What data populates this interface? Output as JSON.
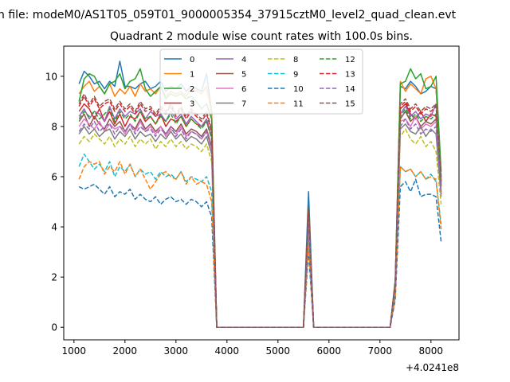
{
  "figure": {
    "suptitle": "n file: modeM0/AS1T05_059T01_9000005354_37915cztM0_level2_quad_clean.evt",
    "title": "Quadrant 2 module wise count rates with 100.0s bins.",
    "offset_label": "+4.0241e8"
  },
  "chart_data": {
    "type": "line",
    "title": "Quadrant 2 module wise count rates with 100.0s bins.",
    "xlabel": "",
    "ylabel": "",
    "x_offset": 402410000,
    "xlim": [
      800,
      8550
    ],
    "ylim": [
      -0.5,
      11.2
    ],
    "xticks": [
      1000,
      2000,
      3000,
      4000,
      5000,
      6000,
      7000,
      8000
    ],
    "yticks": [
      0,
      2,
      4,
      6,
      8,
      10
    ],
    "grid": false,
    "legend": {
      "placement": "top-center",
      "columns": 4
    },
    "x": [
      1100,
      1200,
      1300,
      1400,
      1500,
      1600,
      1700,
      1800,
      1900,
      2000,
      2100,
      2200,
      2300,
      2400,
      2500,
      2600,
      2700,
      2800,
      2900,
      3000,
      3100,
      3200,
      3300,
      3400,
      3500,
      3600,
      3700,
      3800,
      3900,
      4000,
      4100,
      4200,
      4300,
      4400,
      4500,
      4600,
      4700,
      4800,
      4900,
      5000,
      5100,
      5200,
      5300,
      5400,
      5500,
      5600,
      5700,
      5800,
      5900,
      6000,
      6100,
      6200,
      6300,
      6400,
      6500,
      6600,
      6700,
      6800,
      6900,
      7000,
      7100,
      7200,
      7300,
      7400,
      7500,
      7600,
      7700,
      7800,
      7900,
      8000,
      8100,
      8200
    ],
    "series": [
      {
        "name": "0",
        "color": "#1f77b4",
        "dash": "solid",
        "values": [
          9.7,
          10.2,
          10.0,
          9.7,
          9.8,
          9.5,
          9.8,
          9.6,
          10.6,
          9.6,
          9.6,
          9.5,
          9.7,
          9.8,
          9.5,
          9.6,
          9.8,
          9.4,
          9.6,
          9.5,
          9.7,
          9.4,
          9.6,
          9.5,
          9.4,
          10.1,
          8.6,
          0,
          0,
          0,
          0,
          0,
          0,
          0,
          0,
          0,
          0,
          0,
          0,
          0,
          0,
          0,
          0,
          0,
          0,
          5.4,
          0,
          0,
          0,
          0,
          0,
          0,
          0,
          0,
          0,
          0,
          0,
          0,
          0,
          0,
          0,
          0,
          1.8,
          9.6,
          9.5,
          9.8,
          9.6,
          9.3,
          9.4,
          9.6,
          9.5,
          6.0
        ]
      },
      {
        "name": "1",
        "color": "#ff7f0e",
        "dash": "solid",
        "values": [
          9.3,
          9.6,
          9.8,
          9.4,
          9.6,
          9.3,
          9.7,
          9.2,
          9.5,
          9.3,
          9.6,
          9.2,
          9.7,
          9.4,
          9.5,
          9.3,
          9.6,
          9.2,
          9.4,
          9.3,
          9.4,
          9.2,
          9.5,
          9.4,
          9.3,
          9.6,
          8.5,
          0,
          0,
          0,
          0,
          0,
          0,
          0,
          0,
          0,
          0,
          0,
          0,
          0,
          0,
          0,
          0,
          0,
          0,
          4.6,
          0,
          0,
          0,
          0,
          0,
          0,
          0,
          0,
          0,
          0,
          0,
          0,
          0,
          0,
          0,
          0,
          1.8,
          9.8,
          9.4,
          9.7,
          9.5,
          9.3,
          9.9,
          10.0,
          9.5,
          5.9
        ]
      },
      {
        "name": "2",
        "color": "#2ca02c",
        "dash": "solid",
        "values": [
          9.0,
          9.9,
          10.1,
          10.0,
          9.6,
          9.3,
          9.7,
          9.8,
          10.1,
          9.5,
          9.8,
          9.9,
          10.3,
          9.5,
          9.2,
          9.4,
          9.6,
          9.1,
          9.3,
          9.2,
          9.3,
          9.1,
          9.2,
          9.0,
          8.7,
          8.9,
          8.3,
          0,
          0,
          0,
          0,
          0,
          0,
          0,
          0,
          0,
          0,
          0,
          0,
          0,
          0,
          0,
          0,
          0,
          0,
          4.8,
          0,
          0,
          0,
          0,
          0,
          0,
          0,
          0,
          0,
          0,
          0,
          0,
          0,
          0,
          0,
          0,
          1.9,
          9.7,
          9.8,
          10.3,
          9.9,
          10.1,
          9.5,
          9.6,
          10.0,
          6.2
        ]
      },
      {
        "name": "3",
        "color": "#d62728",
        "dash": "solid",
        "values": [
          8.6,
          8.9,
          8.7,
          8.3,
          8.7,
          8.2,
          8.6,
          8.1,
          8.5,
          8.0,
          8.4,
          8.3,
          8.6,
          8.2,
          8.4,
          8.1,
          8.5,
          8.0,
          8.3,
          8.2,
          8.4,
          8.0,
          8.3,
          8.1,
          8.0,
          8.2,
          7.6,
          0,
          0,
          0,
          0,
          0,
          0,
          0,
          0,
          0,
          0,
          0,
          0,
          0,
          0,
          0,
          0,
          0,
          0,
          4.4,
          0,
          0,
          0,
          0,
          0,
          0,
          0,
          0,
          0,
          0,
          0,
          0,
          0,
          0,
          0,
          0,
          1.7,
          8.7,
          8.9,
          8.5,
          8.3,
          8.6,
          8.2,
          8.5,
          8.4,
          5.6
        ]
      },
      {
        "name": "4",
        "color": "#9467bd",
        "dash": "solid",
        "values": [
          8.4,
          8.7,
          8.3,
          8.6,
          8.5,
          8.2,
          8.8,
          8.3,
          8.7,
          8.4,
          8.6,
          8.5,
          8.7,
          8.3,
          8.6,
          8.4,
          8.5,
          8.2,
          8.6,
          8.3,
          8.5,
          8.1,
          8.4,
          8.2,
          8.0,
          8.3,
          7.6,
          0,
          0,
          0,
          0,
          0,
          0,
          0,
          0,
          0,
          0,
          0,
          0,
          0,
          0,
          0,
          0,
          0,
          0,
          4.5,
          0,
          0,
          0,
          0,
          0,
          0,
          0,
          0,
          0,
          0,
          0,
          0,
          0,
          0,
          0,
          0,
          1.7,
          8.5,
          8.8,
          8.4,
          8.6,
          8.3,
          8.5,
          8.4,
          8.9,
          5.7
        ]
      },
      {
        "name": "5",
        "color": "#8c564b",
        "dash": "solid",
        "values": [
          8.2,
          8.5,
          8.0,
          8.4,
          8.1,
          7.9,
          8.3,
          8.0,
          8.2,
          7.8,
          8.1,
          7.9,
          8.3,
          7.9,
          8.1,
          7.8,
          8.0,
          7.7,
          8.0,
          7.8,
          8.1,
          7.7,
          7.9,
          7.8,
          7.6,
          7.9,
          7.2,
          0,
          0,
          0,
          0,
          0,
          0,
          0,
          0,
          0,
          0,
          0,
          0,
          0,
          0,
          0,
          0,
          0,
          0,
          4.2,
          0,
          0,
          0,
          0,
          0,
          0,
          0,
          0,
          0,
          0,
          0,
          0,
          0,
          0,
          0,
          0,
          1.6,
          8.3,
          8.6,
          8.2,
          8.4,
          8.0,
          8.2,
          8.1,
          8.3,
          5.4
        ]
      },
      {
        "name": "6",
        "color": "#e377c2",
        "dash": "solid",
        "values": [
          8.0,
          8.3,
          8.1,
          7.9,
          8.2,
          7.8,
          8.1,
          7.9,
          8.0,
          7.7,
          8.1,
          7.8,
          8.2,
          7.8,
          8.0,
          7.7,
          8.0,
          7.6,
          7.9,
          7.7,
          8.0,
          7.6,
          7.8,
          7.7,
          7.5,
          7.8,
          7.1,
          0,
          0,
          0,
          0,
          0,
          0,
          0,
          0,
          0,
          0,
          0,
          0,
          0,
          0,
          0,
          0,
          0,
          0,
          4.3,
          0,
          0,
          0,
          0,
          0,
          0,
          0,
          0,
          0,
          0,
          0,
          0,
          0,
          0,
          0,
          0,
          1.6,
          8.2,
          8.3,
          8.0,
          8.4,
          7.9,
          8.1,
          8.0,
          8.2,
          5.3
        ]
      },
      {
        "name": "7",
        "color": "#7f7f7f",
        "dash": "solid",
        "values": [
          7.7,
          8.0,
          7.7,
          7.9,
          7.6,
          7.8,
          7.9,
          7.5,
          7.8,
          7.6,
          7.9,
          7.5,
          7.8,
          7.6,
          7.7,
          7.4,
          7.7,
          7.5,
          7.8,
          7.5,
          7.7,
          7.4,
          7.6,
          7.5,
          7.3,
          7.6,
          6.9,
          0,
          0,
          0,
          0,
          0,
          0,
          0,
          0,
          0,
          0,
          0,
          0,
          0,
          0,
          0,
          0,
          0,
          0,
          4.1,
          0,
          0,
          0,
          0,
          0,
          0,
          0,
          0,
          0,
          0,
          0,
          0,
          0,
          0,
          0,
          0,
          1.5,
          7.9,
          8.1,
          7.8,
          7.7,
          8.0,
          7.6,
          7.9,
          7.7,
          5.2
        ]
      },
      {
        "name": "8",
        "color": "#bcbd22",
        "dash": "dashed",
        "values": [
          7.3,
          7.6,
          7.4,
          7.7,
          7.5,
          7.3,
          7.6,
          7.2,
          7.5,
          7.3,
          7.6,
          7.2,
          7.5,
          7.3,
          7.5,
          7.1,
          7.4,
          7.2,
          7.5,
          7.2,
          7.4,
          7.1,
          7.3,
          7.2,
          7.0,
          7.3,
          6.6,
          0,
          0,
          0,
          0,
          0,
          0,
          0,
          0,
          0,
          0,
          0,
          0,
          0,
          0,
          0,
          0,
          0,
          0,
          3.8,
          0,
          0,
          0,
          0,
          0,
          0,
          0,
          0,
          0,
          0,
          0,
          0,
          0,
          0,
          0,
          0,
          1.4,
          7.6,
          7.9,
          7.5,
          7.3,
          7.6,
          7.2,
          7.4,
          7.0,
          4.9
        ]
      },
      {
        "name": "9",
        "color": "#17becf",
        "dash": "dashed",
        "values": [
          6.4,
          6.9,
          6.6,
          6.3,
          6.5,
          6.2,
          6.6,
          6.0,
          6.4,
          6.2,
          6.5,
          6.0,
          6.3,
          6.1,
          6.2,
          5.9,
          6.2,
          6.0,
          6.1,
          5.9,
          6.2,
          5.8,
          6.0,
          5.9,
          5.8,
          6.0,
          5.4,
          0,
          0,
          0,
          0,
          0,
          0,
          0,
          0,
          0,
          0,
          0,
          0,
          0,
          0,
          0,
          0,
          0,
          0,
          3.5,
          0,
          0,
          0,
          0,
          0,
          0,
          0,
          0,
          0,
          0,
          0,
          0,
          0,
          0,
          0,
          0,
          1.3,
          6.4,
          6.2,
          6.3,
          6.0,
          6.2,
          5.9,
          6.1,
          5.8,
          4.1
        ]
      },
      {
        "name": "10",
        "color": "#1f77b4",
        "dash": "dashed",
        "values": [
          5.6,
          5.5,
          5.6,
          5.7,
          5.5,
          5.3,
          5.6,
          5.2,
          5.4,
          5.3,
          5.5,
          5.1,
          5.3,
          5.1,
          5.0,
          5.2,
          4.9,
          5.1,
          5.2,
          5.0,
          5.1,
          4.9,
          5.1,
          5.0,
          4.8,
          5.0,
          4.4,
          0,
          0,
          0,
          0,
          0,
          0,
          0,
          0,
          0,
          0,
          0,
          0,
          0,
          0,
          0,
          0,
          0,
          0,
          3.0,
          0,
          0,
          0,
          0,
          0,
          0,
          0,
          0,
          0,
          0,
          0,
          0,
          0,
          0,
          0,
          0,
          1.1,
          5.6,
          5.8,
          5.4,
          5.9,
          5.2,
          5.3,
          5.3,
          5.2,
          3.4
        ]
      },
      {
        "name": "11",
        "color": "#ff7f0e",
        "dash": "dashed",
        "values": [
          5.9,
          6.4,
          6.6,
          6.5,
          6.6,
          6.1,
          6.4,
          6.2,
          6.6,
          6.1,
          6.5,
          6.0,
          6.3,
          5.9,
          5.5,
          5.8,
          6.1,
          6.2,
          6.0,
          5.9,
          6.2,
          5.7,
          6.0,
          5.7,
          5.8,
          5.7,
          5.0,
          0,
          0,
          0,
          0,
          0,
          0,
          0,
          0,
          0,
          0,
          0,
          0,
          0,
          0,
          0,
          0,
          0,
          0,
          3.3,
          0,
          0,
          0,
          0,
          0,
          0,
          0,
          0,
          0,
          0,
          0,
          0,
          0,
          0,
          0,
          0,
          1.2,
          6.4,
          6.2,
          6.3,
          6.0,
          6.2,
          5.9,
          6.0,
          5.9,
          3.9
        ]
      },
      {
        "name": "12",
        "color": "#2ca02c",
        "dash": "dashed",
        "values": [
          8.3,
          8.6,
          8.4,
          8.6,
          8.3,
          8.5,
          8.7,
          8.2,
          8.6,
          8.3,
          8.5,
          8.2,
          8.6,
          8.3,
          8.4,
          8.1,
          8.4,
          8.2,
          8.5,
          8.1,
          8.4,
          8.0,
          8.3,
          8.1,
          7.9,
          8.2,
          7.5,
          0,
          0,
          0,
          0,
          0,
          0,
          0,
          0,
          0,
          0,
          0,
          0,
          0,
          0,
          0,
          0,
          0,
          0,
          4.6,
          0,
          0,
          0,
          0,
          0,
          0,
          0,
          0,
          0,
          0,
          0,
          0,
          0,
          0,
          0,
          0,
          1.7,
          8.4,
          8.7,
          8.3,
          8.5,
          8.2,
          8.4,
          8.3,
          8.5,
          5.6
        ]
      },
      {
        "name": "13",
        "color": "#d62728",
        "dash": "dashed",
        "values": [
          8.8,
          9.2,
          8.8,
          9.1,
          8.7,
          8.9,
          9.0,
          8.6,
          8.9,
          8.6,
          8.8,
          8.5,
          8.9,
          8.6,
          8.7,
          8.4,
          8.7,
          8.5,
          8.8,
          8.4,
          8.7,
          8.3,
          8.6,
          8.4,
          8.2,
          8.5,
          7.8,
          0,
          0,
          0,
          0,
          0,
          0,
          0,
          0,
          0,
          0,
          0,
          0,
          0,
          0,
          0,
          0,
          0,
          0,
          4.7,
          0,
          0,
          0,
          0,
          0,
          0,
          0,
          0,
          0,
          0,
          0,
          0,
          0,
          0,
          0,
          0,
          1.8,
          8.8,
          9.0,
          8.6,
          8.8,
          8.5,
          8.7,
          8.6,
          8.8,
          5.8
        ]
      },
      {
        "name": "14",
        "color": "#9467bd",
        "dash": "dashed",
        "values": [
          7.8,
          8.1,
          7.9,
          8.2,
          7.8,
          8.0,
          8.1,
          7.7,
          8.0,
          7.8,
          8.1,
          7.7,
          8.0,
          7.8,
          7.9,
          7.6,
          7.9,
          7.7,
          8.0,
          7.6,
          7.9,
          7.5,
          7.8,
          7.7,
          7.5,
          7.8,
          7.1,
          0,
          0,
          0,
          0,
          0,
          0,
          0,
          0,
          0,
          0,
          0,
          0,
          0,
          0,
          0,
          0,
          0,
          0,
          4.2,
          0,
          0,
          0,
          0,
          0,
          0,
          0,
          0,
          0,
          0,
          0,
          0,
          0,
          0,
          0,
          0,
          1.6,
          8.0,
          8.3,
          7.9,
          8.1,
          7.7,
          7.9,
          7.8,
          8.0,
          5.3
        ]
      },
      {
        "name": "15",
        "color": "#8c564b",
        "dash": "dashed",
        "values": [
          8.9,
          9.3,
          8.9,
          9.2,
          8.8,
          9.0,
          9.1,
          8.7,
          9.0,
          8.7,
          8.9,
          8.6,
          9.0,
          8.7,
          8.8,
          8.5,
          8.8,
          8.6,
          8.9,
          8.5,
          8.8,
          8.4,
          8.7,
          8.5,
          8.3,
          8.6,
          7.9,
          0,
          0,
          0,
          0,
          0,
          0,
          0,
          0,
          0,
          0,
          0,
          0,
          0,
          0,
          0,
          0,
          0,
          0,
          4.8,
          0,
          0,
          0,
          0,
          0,
          0,
          0,
          0,
          0,
          0,
          0,
          0,
          0,
          0,
          0,
          0,
          1.8,
          8.9,
          9.1,
          8.7,
          8.9,
          8.6,
          8.8,
          8.7,
          8.9,
          5.9
        ]
      }
    ]
  }
}
